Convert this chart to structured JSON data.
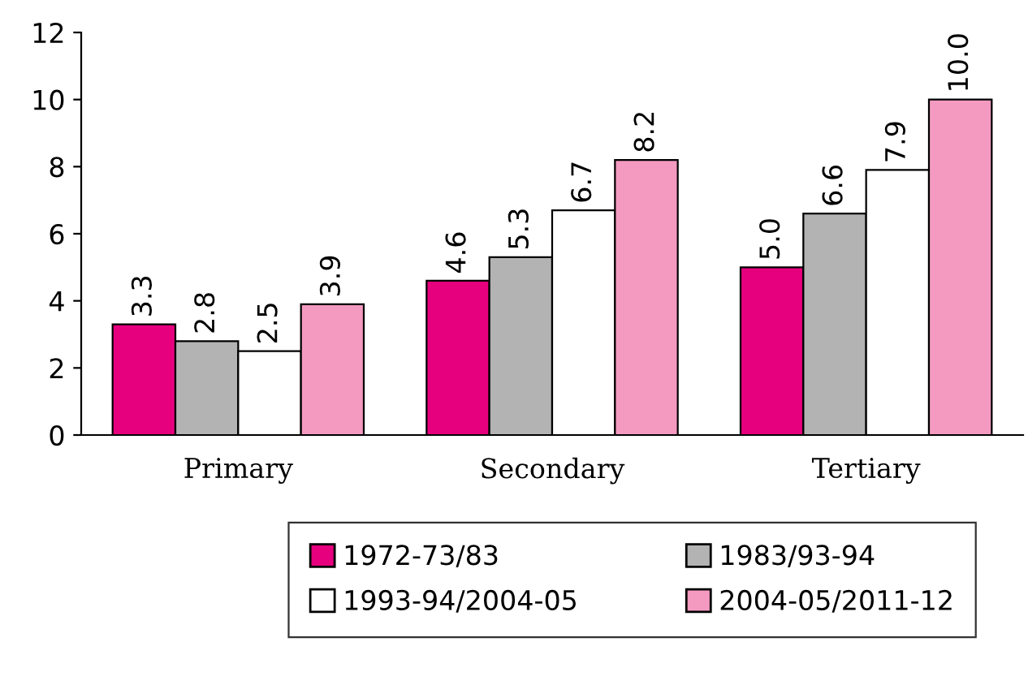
{
  "chart_data": {
    "type": "bar",
    "categories": [
      "Primary",
      "Secondary",
      "Tertiary"
    ],
    "series": [
      {
        "name": "1972-73/83",
        "color": "#e6007e",
        "values": [
          3.3,
          4.6,
          5.0
        ],
        "value_labels": [
          "3.3",
          "4.6",
          "5.0"
        ]
      },
      {
        "name": "1983/93-94",
        "color": "#b3b3b3",
        "values": [
          2.8,
          5.3,
          6.6
        ],
        "value_labels": [
          "2.8",
          "5.3",
          "6.6"
        ]
      },
      {
        "name": "1993-94/2004-05",
        "color": "#ffffff",
        "values": [
          2.5,
          6.7,
          7.9
        ],
        "value_labels": [
          "2.5",
          "6.7",
          "7.9"
        ]
      },
      {
        "name": "2004-05/2011-12",
        "color": "#f49ac1",
        "values": [
          3.9,
          8.2,
          10.0
        ],
        "value_labels": [
          "3.9",
          "8.2",
          "10.0"
        ]
      }
    ],
    "ylim": [
      0,
      12
    ],
    "yticks": [
      0,
      2,
      4,
      6,
      8,
      10,
      12
    ],
    "grid": false,
    "legend": "bottom"
  }
}
